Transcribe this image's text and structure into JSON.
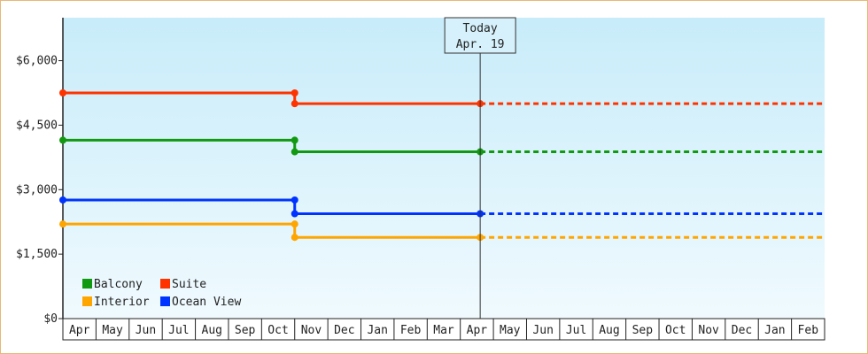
{
  "chart_data": {
    "type": "line",
    "title": "",
    "xlabel": "",
    "ylabel": "",
    "ylim": [
      0,
      7000
    ],
    "y_ticks": [
      {
        "value": 0,
        "label": "$0"
      },
      {
        "value": 1500,
        "label": "$1,500"
      },
      {
        "value": 3000,
        "label": "$3,000"
      },
      {
        "value": 4500,
        "label": "$4,500"
      },
      {
        "value": 6000,
        "label": "$6,000"
      }
    ],
    "categories": [
      "Apr",
      "May",
      "Jun",
      "Jul",
      "Aug",
      "Sep",
      "Oct",
      "Nov",
      "Dec",
      "Jan",
      "Feb",
      "Mar",
      "Apr",
      "May",
      "Jun",
      "Jul",
      "Aug",
      "Sep",
      "Oct",
      "Nov",
      "Dec",
      "Jan",
      "Feb"
    ],
    "grid": false,
    "legend_position": "bottom-left",
    "today_marker": {
      "label_line1": "Today",
      "label_line2": "Apr. 19",
      "x_index": 12.6
    },
    "series": [
      {
        "name": "Balcony",
        "color": "#119911",
        "points": [
          {
            "x": 0,
            "y": 4150
          },
          {
            "x": 7,
            "y": 4150
          },
          {
            "x": 7,
            "y": 3880
          },
          {
            "x": 12.6,
            "y": 3880
          }
        ],
        "projection": {
          "from": 12.6,
          "to": 23,
          "y": 3880
        }
      },
      {
        "name": "Suite",
        "color": "#ff3300",
        "points": [
          {
            "x": 0,
            "y": 5250
          },
          {
            "x": 7,
            "y": 5250
          },
          {
            "x": 7,
            "y": 5000
          },
          {
            "x": 12.6,
            "y": 5000
          }
        ],
        "projection": {
          "from": 12.6,
          "to": 23,
          "y": 5000
        }
      },
      {
        "name": "Interior",
        "color": "#ffa500",
        "points": [
          {
            "x": 0,
            "y": 2200
          },
          {
            "x": 7,
            "y": 2200
          },
          {
            "x": 7,
            "y": 1890
          },
          {
            "x": 12.6,
            "y": 1890
          }
        ],
        "projection": {
          "from": 12.6,
          "to": 23,
          "y": 1890
        }
      },
      {
        "name": "Ocean View",
        "color": "#0033ff",
        "points": [
          {
            "x": 0,
            "y": 2760
          },
          {
            "x": 7,
            "y": 2760
          },
          {
            "x": 7,
            "y": 2440
          },
          {
            "x": 12.6,
            "y": 2440
          }
        ],
        "projection": {
          "from": 12.6,
          "to": 23,
          "y": 2440
        }
      }
    ],
    "colors": {
      "plot_bg_top": "#c8ecfa",
      "plot_bg_bottom": "#f0fafe",
      "frame_border": "#e8b878"
    }
  }
}
